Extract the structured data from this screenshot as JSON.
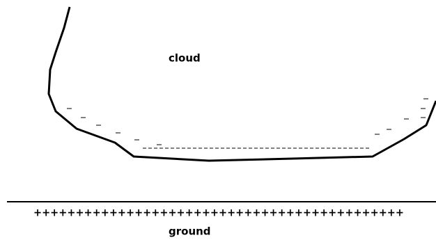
{
  "cloud_label": "cloud",
  "ground_pattern": "++++++++++++++++++++++++++++++++++++++++++++",
  "ground_label": "ground"
}
